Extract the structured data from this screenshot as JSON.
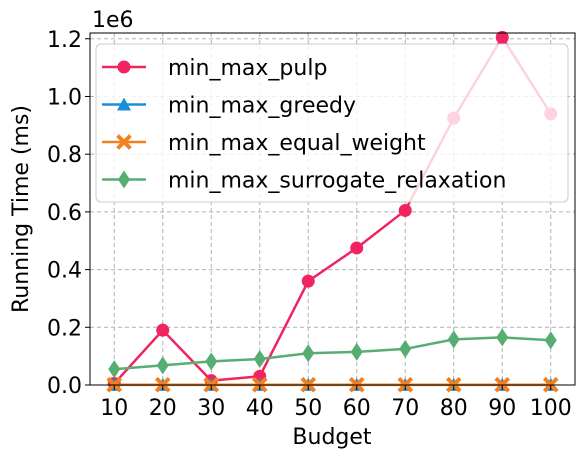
{
  "chart_data": {
    "type": "line",
    "xlabel": "Budget",
    "ylabel": "Running Time (ms)",
    "y_scale_label": "1e6",
    "x": [
      10,
      20,
      30,
      40,
      50,
      60,
      70,
      80,
      90,
      100
    ],
    "xlim": [
      5,
      105
    ],
    "ylim": [
      0,
      1220000
    ],
    "x_ticks": [
      "10",
      "20",
      "30",
      "40",
      "50",
      "60",
      "70",
      "80",
      "90",
      "100"
    ],
    "y_ticks": [
      {
        "value": 0,
        "label": "0.0"
      },
      {
        "value": 200000,
        "label": "0.2"
      },
      {
        "value": 400000,
        "label": "0.4"
      },
      {
        "value": 600000,
        "label": "0.6"
      },
      {
        "value": 800000,
        "label": "0.8"
      },
      {
        "value": 1000000,
        "label": "1.0"
      },
      {
        "value": 1200000,
        "label": "1.2"
      }
    ],
    "grid": true,
    "legend_position": "top-left",
    "series": [
      {
        "name": "min_max_pulp",
        "color": "#f0245e",
        "marker": "circle",
        "values": [
          5000,
          190000,
          15000,
          30000,
          360000,
          475000,
          605000,
          925000,
          1205000,
          940000
        ]
      },
      {
        "name": "min_max_greedy",
        "color": "#1a8fd8",
        "marker": "triangle",
        "values": [
          500,
          500,
          500,
          500,
          500,
          500,
          500,
          500,
          500,
          500
        ]
      },
      {
        "name": "min_max_equal_weight",
        "color": "#f28020",
        "marker": "x",
        "values": [
          1000,
          1000,
          1000,
          1000,
          1000,
          1000,
          1000,
          1000,
          1000,
          1000
        ]
      },
      {
        "name": "min_max_surrogate_relaxation",
        "color": "#57ad72",
        "marker": "diamond",
        "values": [
          55000,
          68000,
          82000,
          90000,
          110000,
          115000,
          125000,
          158000,
          165000,
          155000
        ]
      }
    ]
  }
}
